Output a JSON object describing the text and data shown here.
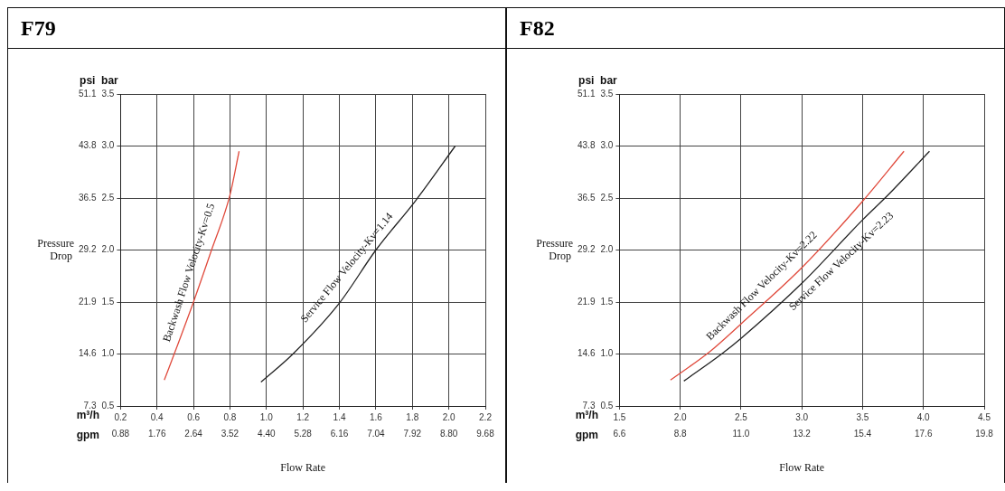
{
  "chart_data": [
    {
      "type": "line",
      "title": "F79",
      "xlabel": "m³/h",
      "x2label": "gpm",
      "ylabel": "bar",
      "y2label": "psi",
      "annotations": [
        "Pressure Drop",
        "Flow Rate"
      ],
      "xlim": [
        0.2,
        2.2
      ],
      "xticks": [
        0.2,
        0.4,
        0.6,
        0.8,
        {
          "value": 1,
          "label": "1.0"
        },
        1.2,
        1.4,
        1.6,
        1.8,
        {
          "value": 2,
          "label": "2.0"
        },
        2.2
      ],
      "x2lim": [
        0.88,
        9.68
      ],
      "x2ticks": [
        0.88,
        1.76,
        2.64,
        3.52,
        {
          "value": 4.4,
          "label": "4.40"
        },
        5.28,
        6.16,
        7.04,
        7.92,
        {
          "value": 8.8,
          "label": "8.80"
        },
        9.68
      ],
      "ylim": [
        0.5,
        3.5
      ],
      "yticks": [
        0.5,
        {
          "value": 1,
          "label": "1.0"
        },
        1.5,
        {
          "value": 2,
          "label": "2.0"
        },
        2.5,
        {
          "value": 3,
          "label": "3.0"
        },
        3.5
      ],
      "y2lim": [
        7.3,
        51.1
      ],
      "y2ticks": [
        7.3,
        14.6,
        21.9,
        29.2,
        36.5,
        43.8,
        51.1
      ],
      "grid": true,
      "legend": false,
      "marker": "none",
      "line_style": "solid",
      "series": [
        {
          "name": "Backwash Flow Velocity-Kv=0.5",
          "color": "#e04a3c",
          "x": [
            0.44,
            0.52,
            0.6,
            0.695,
            0.8,
            0.85
          ],
          "values": [
            0.75,
            1.12,
            1.5,
            1.98,
            2.53,
            2.95
          ]
        },
        {
          "name": "Service Flow Velocity-Kv=1.14",
          "color": "#222222",
          "x": [
            0.97,
            1.145,
            1.4,
            1.6,
            1.82,
            2.035
          ],
          "values": [
            0.73,
            1.0,
            1.49,
            2.0,
            2.48,
            3.0
          ]
        }
      ]
    },
    {
      "type": "line",
      "title": "F82",
      "xlabel": "m³/h",
      "x2label": "gpm",
      "ylabel": "bar",
      "y2label": "psi",
      "annotations": [
        "Pressure Drop",
        "Flow Rate"
      ],
      "xlim": [
        1.5,
        4.5
      ],
      "xticks": [
        1.5,
        {
          "value": 2,
          "label": "2.0"
        },
        2.5,
        {
          "value": 3,
          "label": "3.0"
        },
        3.5,
        {
          "value": 4,
          "label": "4.0"
        },
        4.5
      ],
      "x2lim": [
        6.6,
        19.8
      ],
      "x2ticks": [
        6.6,
        8.8,
        {
          "value": 11,
          "label": "11.0"
        },
        13.2,
        15.4,
        17.6,
        19.8
      ],
      "ylim": [
        0.5,
        3.5
      ],
      "yticks": [
        0.5,
        {
          "value": 1,
          "label": "1.0"
        },
        1.5,
        {
          "value": 2,
          "label": "2.0"
        },
        2.5,
        {
          "value": 3,
          "label": "3.0"
        },
        3.5
      ],
      "y2lim": [
        7.3,
        51.1
      ],
      "y2ticks": [
        7.3,
        14.6,
        21.9,
        29.2,
        36.5,
        43.8,
        51.1
      ],
      "grid": true,
      "legend": false,
      "marker": "none",
      "line_style": "solid",
      "series": [
        {
          "name": "Backwash Flow Velocity-Kv=2.22",
          "color": "#e04a3c",
          "x": [
            1.92,
            2.24,
            2.5,
            3.0,
            3.5,
            3.84
          ],
          "values": [
            0.75,
            1.02,
            1.29,
            1.83,
            2.47,
            2.95
          ]
        },
        {
          "name": "Service Flow Velocity-Kv=2.23",
          "color": "#222222",
          "x": [
            2.03,
            2.34,
            2.5,
            3.0,
            3.5,
            3.71,
            4.05
          ],
          "values": [
            0.74,
            1.0,
            1.15,
            1.68,
            2.29,
            2.53,
            2.95
          ]
        }
      ]
    }
  ]
}
